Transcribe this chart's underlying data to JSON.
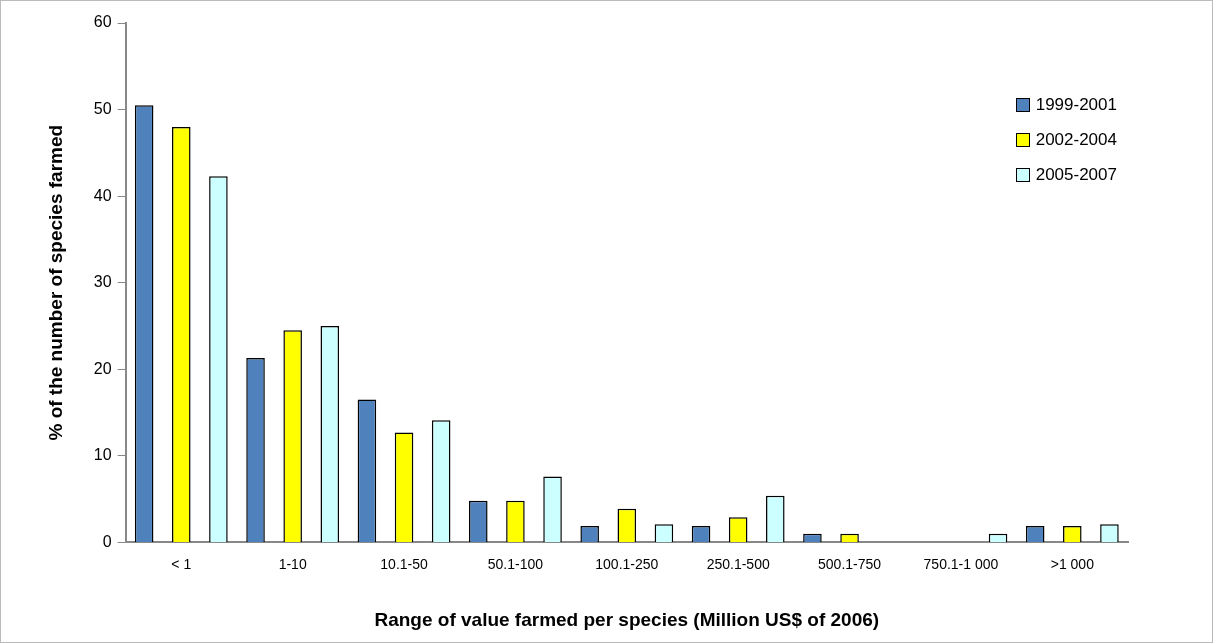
{
  "chart_data": {
    "type": "bar",
    "xlabel": "Range of value farmed per species (Million US$ of 2006)",
    "ylabel": "% of the number of species farmed",
    "categories": [
      "< 1",
      "1-10",
      "10.1-50",
      "50.1-100",
      "100.1-250",
      "250.1-500",
      "500.1-750",
      "750.1-1 000",
      ">1 000"
    ],
    "series": [
      {
        "name": "1999-2001",
        "color": "#4f81bd",
        "values": [
          50.5,
          21.3,
          16.5,
          4.8,
          1.9,
          1.9,
          1,
          0,
          1.9
        ]
      },
      {
        "name": "2002-2004",
        "color": "#ffff00",
        "values": [
          48,
          24.5,
          12.7,
          4.8,
          3.9,
          2.9,
          1,
          0,
          1.9
        ]
      },
      {
        "name": "2005-2007",
        "color": "#ccffff",
        "values": [
          42.3,
          25,
          14.1,
          7.6,
          2.1,
          5.4,
          0,
          1,
          2.1
        ]
      }
    ],
    "ylim": [
      0,
      60
    ],
    "yticks": [
      0,
      10,
      20,
      30,
      40,
      50,
      60
    ],
    "grid": false,
    "legend": "top right"
  }
}
